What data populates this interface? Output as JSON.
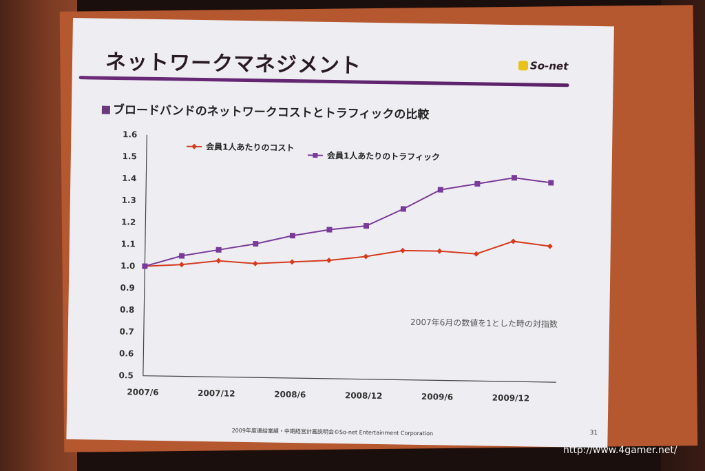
{
  "slide": {
    "title": "ネットワークマネジメント",
    "subtitle": "ブロードバンドのネットワークコストとトラフィックの比較",
    "logo": "So-net",
    "footer": "2009年度連結業績・中期経営計画説明会©So-net Entertainment Corporation",
    "page_number": "31"
  },
  "watermark": "http://www.4gamer.net/",
  "chart_data": {
    "type": "line",
    "title": "",
    "xlabel": "",
    "ylabel": "",
    "ylim": [
      0.5,
      1.6
    ],
    "yticks": [
      "0.5",
      "0.6",
      "0.7",
      "0.8",
      "0.9",
      "1.0",
      "1.1",
      "1.2",
      "1.3",
      "1.4",
      "1.5",
      "1.6"
    ],
    "x_tick_labels": [
      "2007/6",
      "2007/12",
      "2008/6",
      "2008/12",
      "2009/6",
      "2009/12"
    ],
    "x": [
      "2007/6",
      "2007/9",
      "2007/12",
      "2008/3",
      "2008/6",
      "2008/9",
      "2008/12",
      "2009/3",
      "2009/6",
      "2009/9",
      "2009/12",
      "2010/3"
    ],
    "legend_position": "top",
    "annotation": "2007年6月の数値を1とした時の対指数",
    "grid": false,
    "series": [
      {
        "name": "会員1人あたりのコスト",
        "color": "#d43a1e",
        "marker": "diamond",
        "values": [
          1.0,
          1.01,
          1.03,
          1.02,
          1.03,
          1.04,
          1.06,
          1.09,
          1.09,
          1.08,
          1.14,
          1.12
        ]
      },
      {
        "name": "会員1人あたりのトラフィック",
        "color": "#7a3a9a",
        "marker": "square",
        "values": [
          1.0,
          1.05,
          1.08,
          1.11,
          1.15,
          1.18,
          1.2,
          1.28,
          1.37,
          1.4,
          1.43,
          1.41
        ]
      }
    ]
  }
}
